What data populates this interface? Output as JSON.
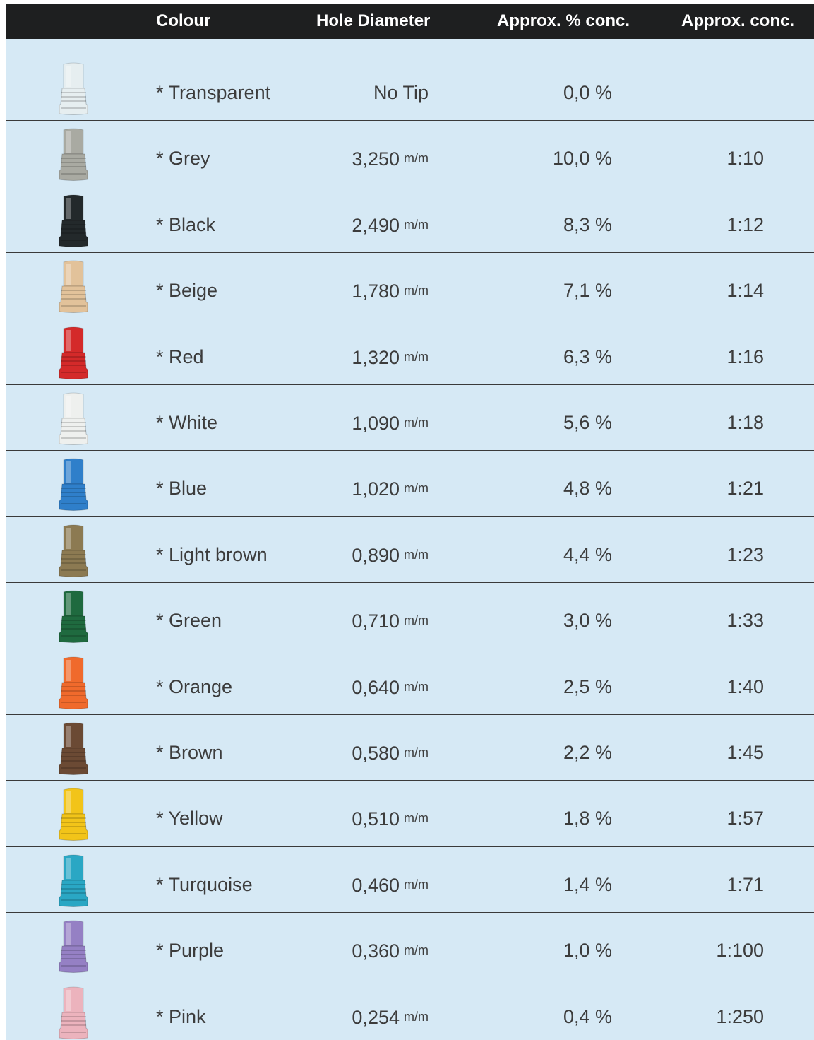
{
  "table": {
    "header": [
      "Colour",
      "Hole Diameter",
      "Approx. % conc.",
      "Approx. conc."
    ],
    "rows": [
      {
        "colour": "* Transparent",
        "diameter": "No Tip",
        "percent": "0,0 %",
        "tip_color": "#e6eef0"
      },
      {
        "colour": "* Grey",
        "diameter": "3,250",
        "unit": "m/m",
        "percent": "10,0 %",
        "ratio": "1:10",
        "tip_color": "#a9aaa2"
      },
      {
        "colour": "* Black",
        "diameter": "2,490",
        "unit": "m/m",
        "percent": "8,3 %",
        "ratio": "1:12",
        "tip_color": "#23292b"
      },
      {
        "colour": "* Beige",
        "diameter": "1,780",
        "unit": "m/m",
        "percent": "7,1 %",
        "ratio": "1:14",
        "tip_color": "#e2c29a"
      },
      {
        "colour": "* Red",
        "diameter": "1,320",
        "unit": "m/m",
        "percent": "6,3 %",
        "ratio": "1:16",
        "tip_color": "#d42a2a"
      },
      {
        "colour": "* White",
        "diameter": "1,090",
        "unit": "m/m",
        "percent": "5,6 %",
        "ratio": "1:18",
        "tip_color": "#eef0ee"
      },
      {
        "colour": "* Blue",
        "diameter": "1,020",
        "unit": "m/m",
        "percent": "4,8 %",
        "ratio": "1:21",
        "tip_color": "#2f7fca"
      },
      {
        "colour": "* Light brown",
        "diameter": "0,890",
        "unit": "m/m",
        "percent": "4,4 %",
        "ratio": "1:23",
        "tip_color": "#8c7a52"
      },
      {
        "colour": "* Green",
        "diameter": "0,710",
        "unit": "m/m",
        "percent": "3,0 %",
        "ratio": "1:33",
        "tip_color": "#1f6a3f"
      },
      {
        "colour": "* Orange",
        "diameter": "0,640",
        "unit": "m/m",
        "percent": "2,5 %",
        "ratio": "1:40",
        "tip_color": "#f06a2c"
      },
      {
        "colour": "* Brown",
        "diameter": "0,580",
        "unit": "m/m",
        "percent": "2,2 %",
        "ratio": "1:45",
        "tip_color": "#6b4a34"
      },
      {
        "colour": "* Yellow",
        "diameter": "0,510",
        "unit": "m/m",
        "percent": "1,8 %",
        "ratio": "1:57",
        "tip_color": "#f2c419"
      },
      {
        "colour": "* Turquoise",
        "diameter": "0,460",
        "unit": "m/m",
        "percent": "1,4 %",
        "ratio": "1:71",
        "tip_color": "#2aa7c4"
      },
      {
        "colour": "* Purple",
        "diameter": "0,360",
        "unit": "m/m",
        "percent": "1,0 %",
        "ratio": "1:100",
        "tip_color": "#9580c4"
      },
      {
        "colour": "* Pink",
        "diameter": "0,254",
        "unit": "m/m",
        "percent": "0,4 %",
        "ratio": "1:250",
        "tip_color": "#ecb3bd"
      }
    ]
  }
}
